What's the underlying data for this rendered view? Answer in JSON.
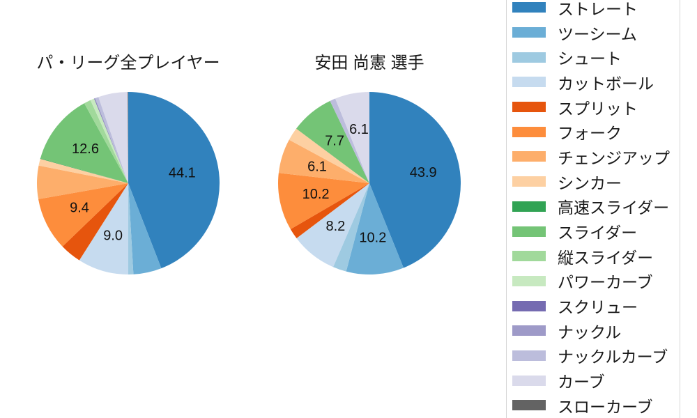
{
  "page": {
    "background": "#ffffff",
    "legend_border_color": "#d5d5d5",
    "text_color": "#1a1a1a"
  },
  "chart_data": {
    "type": "pie",
    "start_angle": "top",
    "direction": "clockwise",
    "label_threshold": 6,
    "label_distance": 0.6,
    "legend_position": "right",
    "categories": [
      "ストレート",
      "ツーシーム",
      "シュート",
      "カットボール",
      "スプリット",
      "フォーク",
      "チェンジアップ",
      "シンカー",
      "高速スライダー",
      "スライダー",
      "縦スライダー",
      "パワーカーブ",
      "スクリュー",
      "ナックル",
      "ナックルカーブ",
      "カーブ",
      "スローカーブ"
    ],
    "colors": [
      "#3182bd",
      "#6baed6",
      "#9ecae1",
      "#c6dbef",
      "#e6550d",
      "#fd8d3c",
      "#fdae6b",
      "#fdd0a2",
      "#31a354",
      "#74c476",
      "#a1d99b",
      "#c7e9c0",
      "#756bb1",
      "#9e9ac8",
      "#bcbddc",
      "#dadaeb",
      "#636363"
    ],
    "charts": [
      {
        "title": "パ・リーグ全プレイヤー",
        "values": [
          44.1,
          5.0,
          0.9,
          9.0,
          3.8,
          9.4,
          5.9,
          1.2,
          0.1,
          12.6,
          1.2,
          0.7,
          0.1,
          0.1,
          0.6,
          5.2,
          0.1
        ],
        "displayed_labels": [
          "44.1",
          "9.0",
          "9.4",
          "12.6"
        ]
      },
      {
        "title": "安田 尚憲 選手",
        "values": [
          43.9,
          10.2,
          2.4,
          8.2,
          1.9,
          10.2,
          6.1,
          2.3,
          0,
          7.7,
          0,
          0,
          0,
          0,
          1.0,
          6.1,
          0
        ],
        "displayed_labels": [
          "43.9",
          "10.2",
          "8.2",
          "10.2",
          "6.1",
          "7.7",
          "6.1"
        ]
      }
    ]
  }
}
